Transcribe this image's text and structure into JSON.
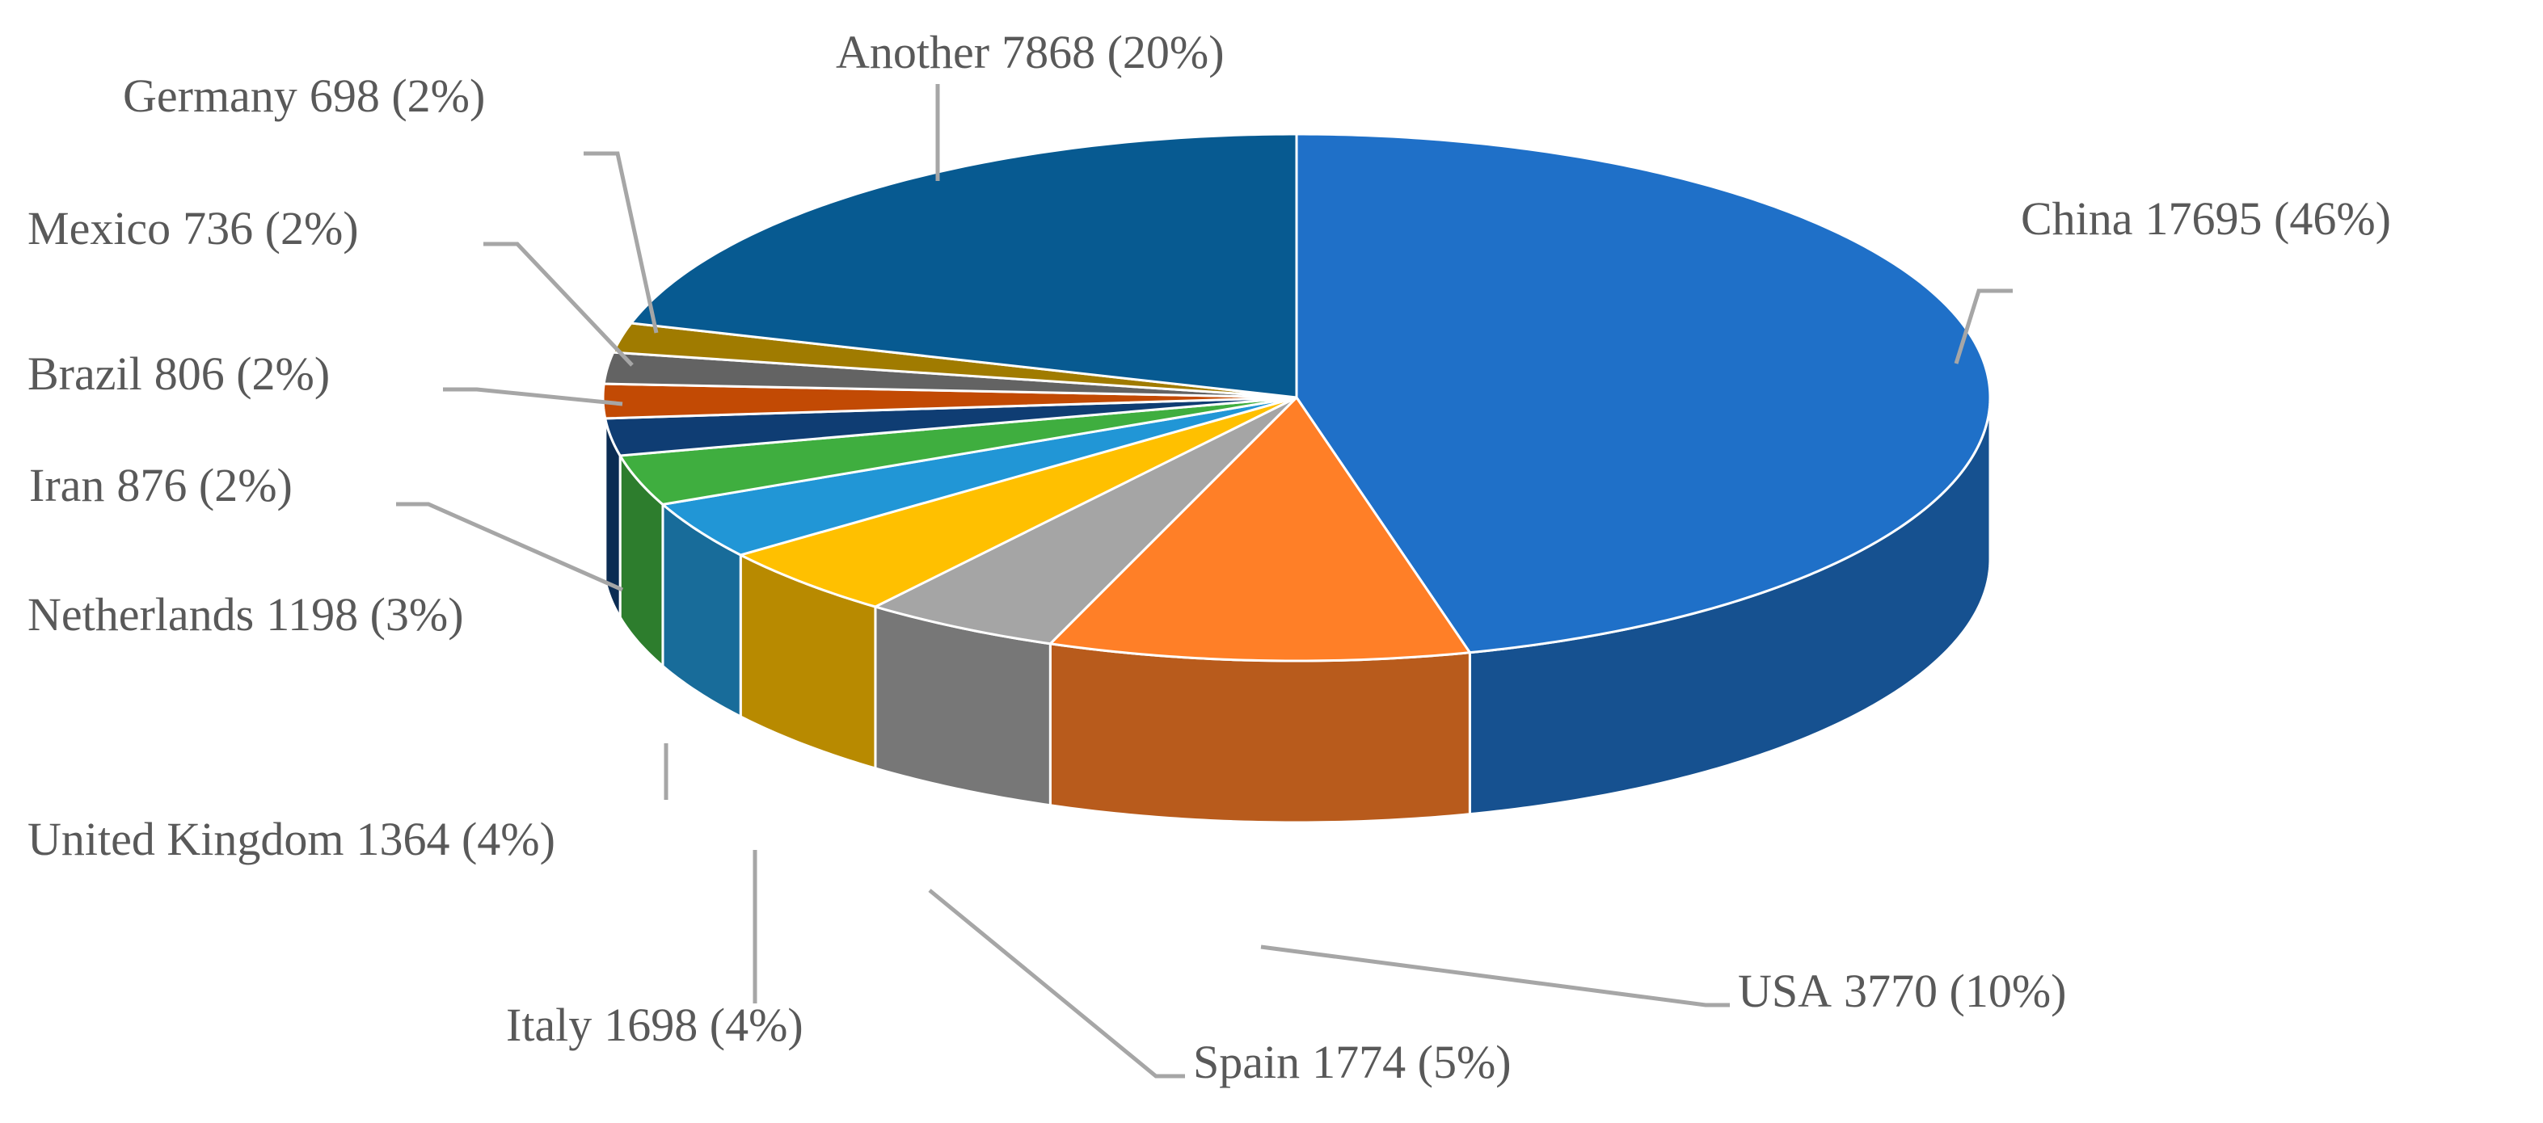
{
  "chart_data": {
    "type": "pie",
    "categories": [
      "China",
      "USA",
      "Spain",
      "Italy",
      "United Kingdom",
      "Netherlands",
      "Iran",
      "Brazil",
      "Mexico",
      "Germany",
      "Another"
    ],
    "values": [
      17695,
      3770,
      1774,
      1698,
      1364,
      1198,
      876,
      806,
      736,
      698,
      7868
    ],
    "value_labels": [
      "17695 (46%)",
      "3770 (10%)",
      "1774 (5%)",
      "1698 (4%)",
      "1364 (4%)",
      "1198 (3%)",
      "876 (2%)",
      "806 (2%)",
      "736 (2%)",
      "698 (2%)",
      "7868 (20%)"
    ],
    "colors": [
      "#1f70c8",
      "#ff7f27",
      "#a5a5a5",
      "#ffc000",
      "#2196d6",
      "#3fae3f",
      "#0f3d73",
      "#c24a04",
      "#636363",
      "#a07b00",
      "#075a91"
    ]
  }
}
